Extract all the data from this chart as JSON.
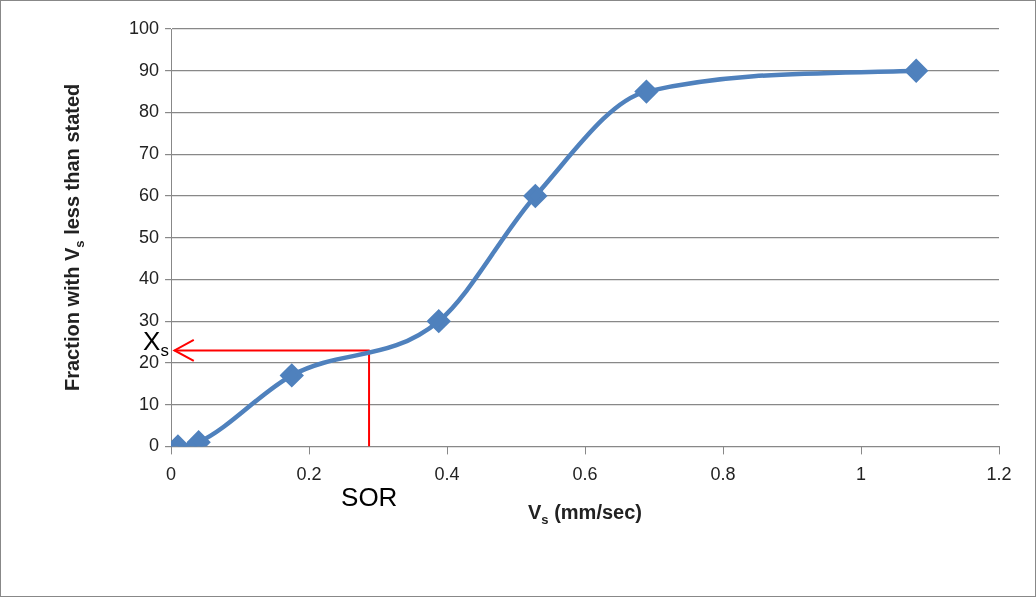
{
  "chart_data": {
    "type": "line",
    "xlabel": "V$_{s}$ (mm/sec)",
    "ylabel": "Fraction with V$_{s}$ less than stated",
    "xlim": [
      0,
      1.2
    ],
    "xticks": [
      0,
      0.2,
      0.4,
      0.6,
      0.8,
      1,
      1.2
    ],
    "ylim": [
      0,
      100
    ],
    "yticks": [
      0,
      10,
      20,
      30,
      40,
      50,
      60,
      70,
      80,
      90,
      100
    ],
    "grid": "y",
    "legend": false,
    "series": [
      {
        "color": "#4f81bd",
        "marker": "diamond",
        "x": [
          0.01,
          0.04,
          0.175,
          0.388,
          0.528,
          0.689,
          1.08
        ],
        "values": [
          0,
          1,
          17,
          30,
          60,
          85,
          90
        ]
      },
      {
        "color": "#ff0000",
        "marker": "none",
        "x": [
          0.287,
          0.287,
          0.005
        ],
        "values": [
          0,
          23,
          23
        ]
      }
    ],
    "annotations": [
      {
        "text": "X$_{s}$",
        "x": 0,
        "y": 23
      },
      {
        "text": "SOR",
        "x": 0.287,
        "y": 0
      }
    ]
  }
}
